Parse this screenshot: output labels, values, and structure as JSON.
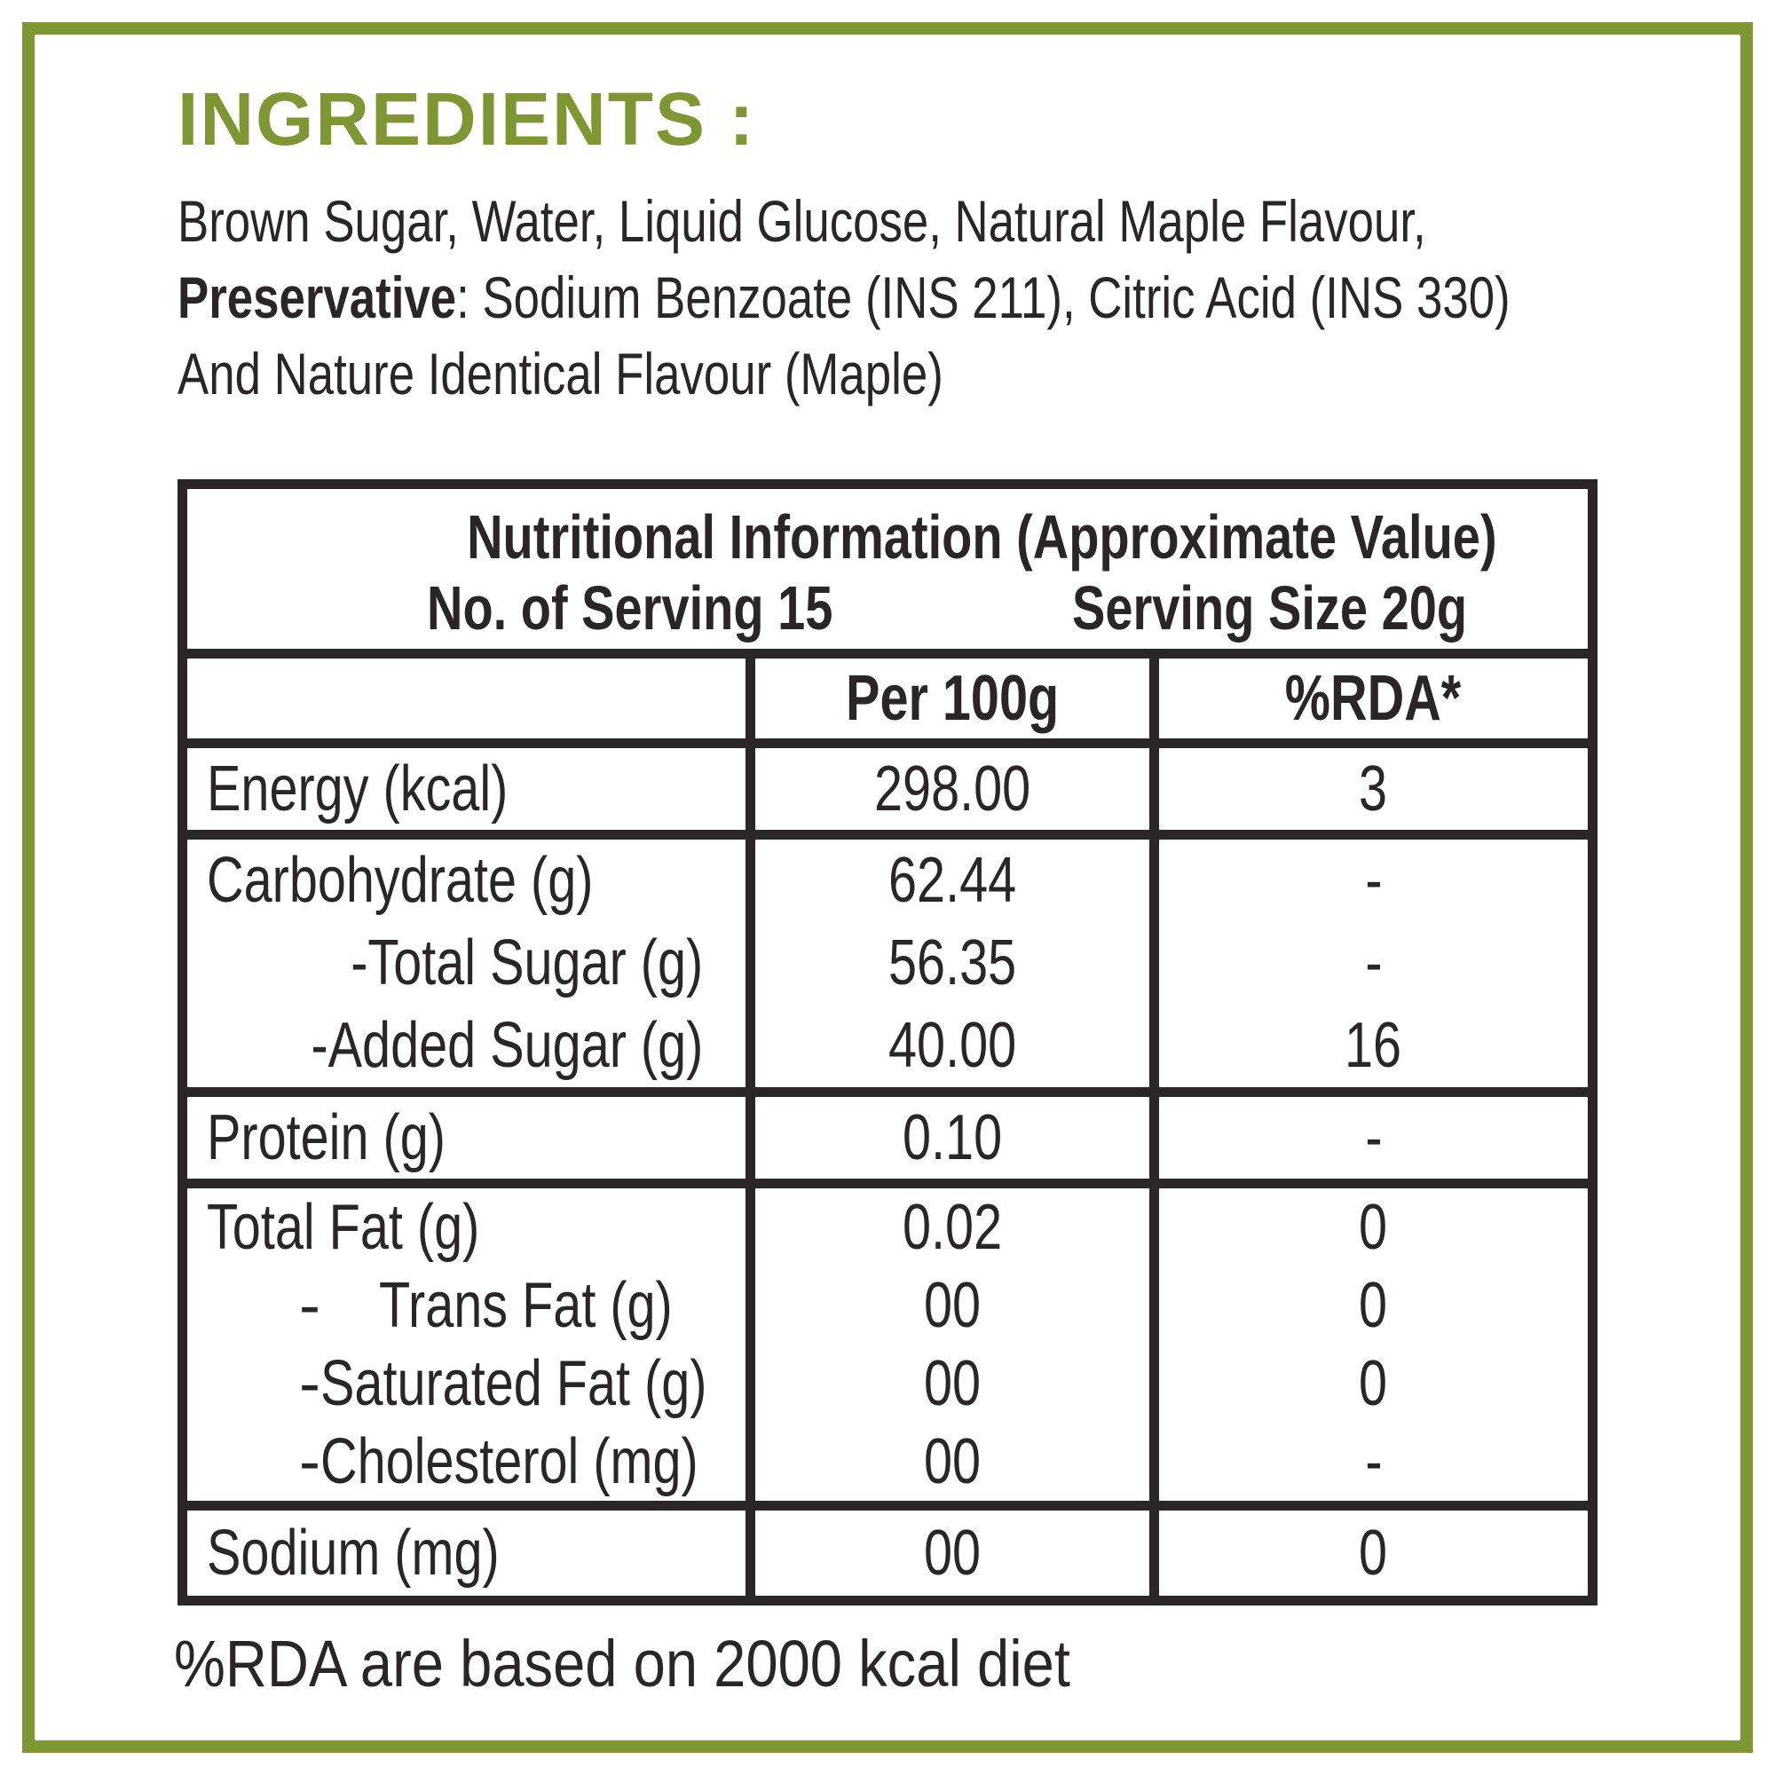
{
  "colors": {
    "accent_green": "#7e9733",
    "ink": "#2a2627",
    "background": "#ffffff"
  },
  "ingredients": {
    "heading": "INGREDIENTS :",
    "line1": "Brown Sugar, Water, Liquid Glucose, Natural Maple Flavour,",
    "line2_bold": "Preservative",
    "line2_rest": ": Sodium Benzoate (INS 211), Citric Acid (INS 330)",
    "line3": "And Nature Identical Flavour (Maple)"
  },
  "table": {
    "title": "Nutritional Information (Approximate Value)",
    "serving_count": "No. of Serving 15",
    "serving_size": "Serving Size 20g",
    "col_per100g": "Per 100g",
    "col_rda": "%RDA*",
    "rows": [
      {
        "label": "Energy (kcal)",
        "per100g": "298.00",
        "rda": "3"
      },
      {
        "label": "Carbohydrate (g)",
        "per100g": "62.44",
        "rda": "-",
        "sub": [
          {
            "label": "-Total Sugar (g)",
            "per100g": "56.35",
            "rda": "-"
          },
          {
            "label": "-Added Sugar (g)",
            "per100g": "40.00",
            "rda": "16"
          }
        ]
      },
      {
        "label": "Protein (g)",
        "per100g": "0.10",
        "rda": "-"
      },
      {
        "label": "Total Fat (g)",
        "per100g": "0.02",
        "rda": "0",
        "sub": [
          {
            "dash": "-",
            "label": "Trans Fat (g)",
            "per100g": "00",
            "rda": "0"
          },
          {
            "dash": "-",
            "label": "Saturated Fat (g)",
            "per100g": "00",
            "rda": "0"
          },
          {
            "dash": "-",
            "label": "Cholesterol (mg)",
            "per100g": "00",
            "rda": "-"
          }
        ]
      },
      {
        "label": "Sodium (mg)",
        "per100g": "00",
        "rda": "0"
      }
    ],
    "footnote": "%RDA are based on 2000 kcal diet"
  }
}
